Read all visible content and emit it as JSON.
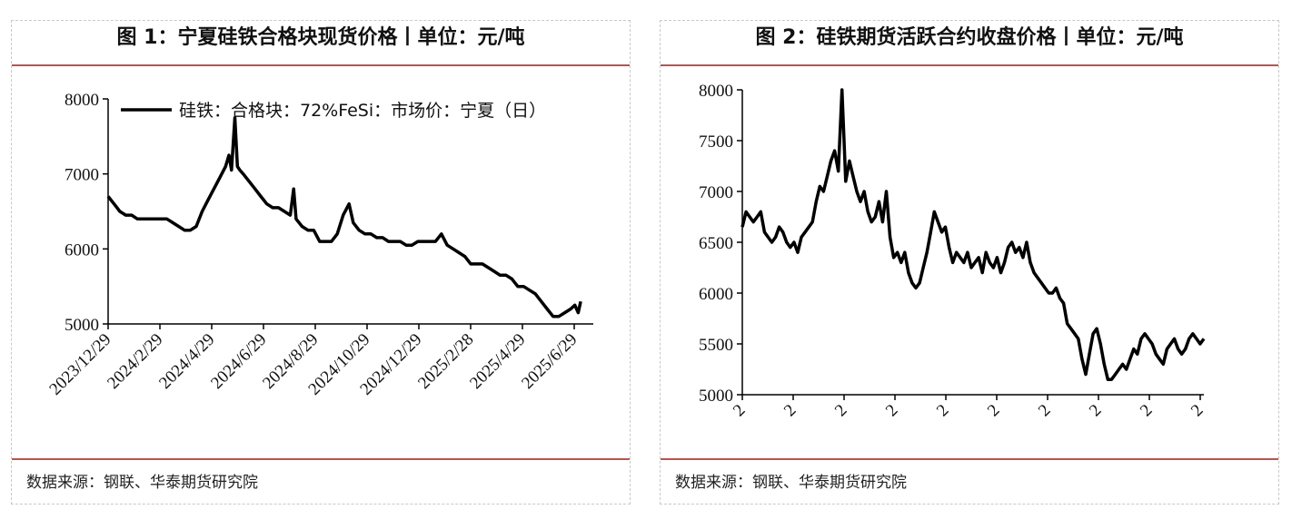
{
  "panels": [
    {
      "title": "图 1：宁夏硅铁合格块现货价格丨单位：元/吨",
      "source": "数据来源：钢联、华泰期货研究院"
    },
    {
      "title": "图 2：硅铁期货活跃合约收盘价格丨单位：元/吨",
      "source": "数据来源：钢联、华泰期货研究院"
    }
  ],
  "chart_data": [
    {
      "type": "line",
      "title": "",
      "xlabel": "",
      "ylabel": "",
      "ylim": [
        5000,
        8000
      ],
      "yticks": [
        5000,
        6000,
        7000,
        8000
      ],
      "xticks": [
        "2023/12/29",
        "2024/2/29",
        "2024/4/29",
        "2024/6/29",
        "2024/8/29",
        "2024/10/29",
        "2024/12/29",
        "2025/2/28",
        "2025/4/29",
        "2025/6/29"
      ],
      "legend_position": "top",
      "grid": false,
      "series": [
        {
          "name": "硅铁：合格块：72%FeSi：市场价：宁夏（日）",
          "color": "#000000",
          "x": [
            "2023-12-29",
            "2024-01-05",
            "2024-01-12",
            "2024-01-19",
            "2024-01-26",
            "2024-02-02",
            "2024-02-16",
            "2024-02-29",
            "2024-03-08",
            "2024-03-15",
            "2024-03-22",
            "2024-03-29",
            "2024-04-05",
            "2024-04-12",
            "2024-04-19",
            "2024-04-26",
            "2024-05-03",
            "2024-05-10",
            "2024-05-17",
            "2024-05-21",
            "2024-05-24",
            "2024-05-28",
            "2024-05-31",
            "2024-06-03",
            "2024-06-07",
            "2024-06-14",
            "2024-06-21",
            "2024-06-28",
            "2024-07-05",
            "2024-07-12",
            "2024-07-19",
            "2024-07-26",
            "2024-08-02",
            "2024-08-06",
            "2024-08-09",
            "2024-08-16",
            "2024-08-23",
            "2024-08-30",
            "2024-09-06",
            "2024-09-13",
            "2024-09-20",
            "2024-09-27",
            "2024-10-04",
            "2024-10-11",
            "2024-10-16",
            "2024-10-23",
            "2024-10-30",
            "2024-11-06",
            "2024-11-13",
            "2024-11-20",
            "2024-11-27",
            "2024-12-04",
            "2024-12-11",
            "2024-12-18",
            "2024-12-25",
            "2025-01-01",
            "2025-01-08",
            "2025-01-15",
            "2025-01-22",
            "2025-01-29",
            "2025-02-05",
            "2025-02-12",
            "2025-02-19",
            "2025-02-26",
            "2025-03-05",
            "2025-03-12",
            "2025-03-19",
            "2025-03-26",
            "2025-04-02",
            "2025-04-09",
            "2025-04-16",
            "2025-04-23",
            "2025-04-30",
            "2025-05-07",
            "2025-05-14",
            "2025-05-21",
            "2025-05-28",
            "2025-06-04",
            "2025-06-11",
            "2025-06-18",
            "2025-06-25",
            "2025-07-02",
            "2025-07-07",
            "2025-07-11",
            "2025-07-14"
          ],
          "values": [
            6700,
            6600,
            6500,
            6450,
            6450,
            6400,
            6400,
            6400,
            6400,
            6350,
            6300,
            6250,
            6250,
            6300,
            6500,
            6650,
            6800,
            6950,
            7100,
            7250,
            7050,
            7750,
            7100,
            7050,
            7000,
            6900,
            6800,
            6700,
            6600,
            6550,
            6550,
            6500,
            6450,
            6800,
            6400,
            6300,
            6250,
            6250,
            6100,
            6100,
            6100,
            6200,
            6450,
            6600,
            6350,
            6250,
            6200,
            6200,
            6150,
            6150,
            6100,
            6100,
            6100,
            6050,
            6050,
            6100,
            6100,
            6100,
            6100,
            6200,
            6050,
            6000,
            5950,
            5900,
            5800,
            5800,
            5800,
            5750,
            5700,
            5650,
            5650,
            5600,
            5500,
            5500,
            5450,
            5400,
            5300,
            5200,
            5100,
            5100,
            5150,
            5200,
            5250,
            5150,
            5300
          ]
        }
      ]
    },
    {
      "type": "line",
      "title": "",
      "xlabel": "",
      "ylabel": "",
      "ylim": [
        5000,
        8000
      ],
      "yticks": [
        5000,
        5500,
        6000,
        6500,
        7000,
        7500,
        8000
      ],
      "xticks": [
        "2",
        "2",
        "2",
        "2",
        "2",
        "2",
        "2",
        "2",
        "2",
        "2"
      ],
      "legend_position": "none",
      "grid": false,
      "series": [
        {
          "color": "#000000",
          "x": [
            0,
            4,
            8,
            12,
            16,
            20,
            24,
            28,
            32,
            36,
            40,
            44,
            48,
            52,
            56,
            60,
            64,
            68,
            72,
            76,
            80,
            84,
            88,
            92,
            96,
            100,
            104,
            108,
            112,
            116,
            120,
            124,
            128,
            132,
            136,
            140,
            144,
            148,
            152,
            156,
            160,
            164,
            168,
            172,
            176,
            180,
            184,
            188,
            192,
            196,
            200,
            204,
            208,
            212,
            216,
            220,
            224,
            228,
            232,
            236,
            240,
            244,
            248,
            252,
            256,
            260,
            264,
            268,
            272,
            276,
            280,
            284,
            288,
            292,
            296,
            300,
            304,
            308,
            312,
            316,
            320,
            324,
            328,
            332,
            336,
            340,
            344,
            348,
            352,
            356,
            360,
            364,
            368,
            372,
            376,
            380,
            384,
            388,
            392,
            396,
            400,
            404,
            408,
            412,
            416,
            420,
            424,
            428,
            432,
            436,
            440,
            444,
            448,
            452,
            456,
            460,
            464,
            468,
            472,
            476,
            480,
            484,
            488,
            492,
            496,
            500
          ],
          "values": [
            6650,
            6800,
            6750,
            6700,
            6750,
            6800,
            6600,
            6550,
            6500,
            6550,
            6650,
            6600,
            6500,
            6450,
            6500,
            6400,
            6550,
            6600,
            6650,
            6700,
            6900,
            7050,
            7000,
            7150,
            7300,
            7400,
            7200,
            8000,
            7100,
            7300,
            7150,
            7000,
            6900,
            7000,
            6800,
            6700,
            6750,
            6900,
            6700,
            7000,
            6550,
            6350,
            6400,
            6300,
            6400,
            6200,
            6100,
            6050,
            6100,
            6250,
            6400,
            6600,
            6800,
            6700,
            6600,
            6650,
            6450,
            6300,
            6400,
            6350,
            6300,
            6400,
            6250,
            6300,
            6350,
            6200,
            6400,
            6300,
            6250,
            6350,
            6200,
            6300,
            6450,
            6500,
            6400,
            6450,
            6350,
            6500,
            6300,
            6200,
            6150,
            6100,
            6050,
            6000,
            6000,
            6050,
            5950,
            5900,
            5700,
            5650,
            5600,
            5550,
            5350,
            5200,
            5400,
            5600,
            5650,
            5500,
            5300,
            5150,
            5150,
            5200,
            5250,
            5300,
            5250,
            5350,
            5450,
            5400,
            5550,
            5600,
            5550,
            5500,
            5400,
            5350,
            5300,
            5450,
            5500,
            5550,
            5450,
            5400,
            5450,
            5550,
            5600,
            5550,
            5500,
            5550
          ]
        }
      ]
    }
  ]
}
